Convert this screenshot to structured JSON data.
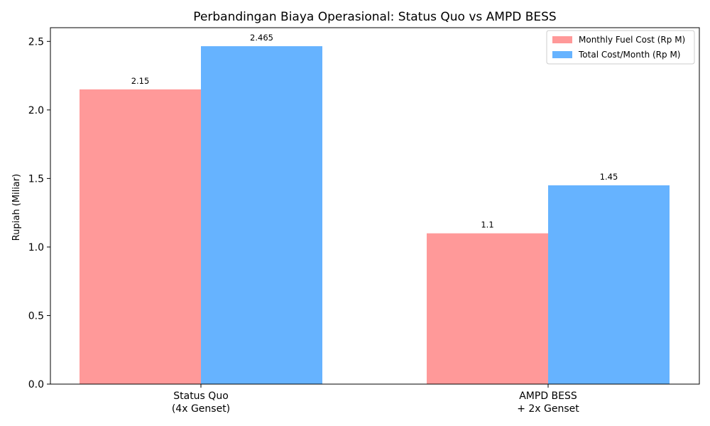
{
  "chart_data": {
    "type": "bar",
    "title": "Perbandingan Biaya Operasional: Status Quo vs AMPD BESS",
    "xlabel": "",
    "ylabel": "Rupiah (Miliar)",
    "categories": [
      [
        "Status Quo",
        "(4x Genset)"
      ],
      [
        "AMPD BESS",
        "+ 2x Genset"
      ]
    ],
    "series": [
      {
        "name": "Monthly Fuel Cost (Rp M)",
        "values": [
          2.15,
          1.1
        ],
        "labels": [
          "2.15",
          "1.1"
        ],
        "color": "#ff9999"
      },
      {
        "name": "Total Cost/Month (Rp M)",
        "values": [
          2.465,
          1.45
        ],
        "labels": [
          "2.465",
          "1.45"
        ],
        "color": "#66b3ff"
      }
    ],
    "ylim": [
      0,
      2.6
    ],
    "yticks": [
      "0.0",
      "0.5",
      "1.0",
      "1.5",
      "2.0",
      "2.5"
    ],
    "grid": false,
    "legend_position": "top-right"
  }
}
